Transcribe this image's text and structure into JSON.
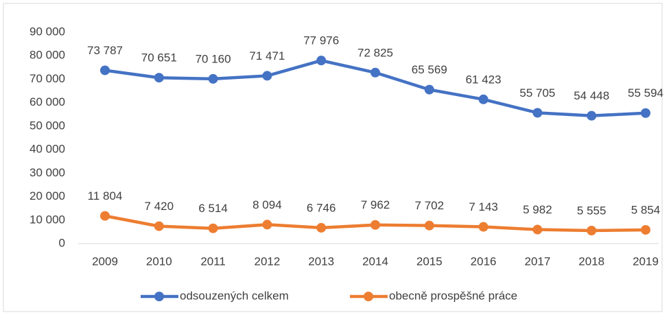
{
  "chart_data": {
    "type": "line",
    "categories": [
      "2009",
      "2010",
      "2011",
      "2012",
      "2013",
      "2014",
      "2015",
      "2016",
      "2017",
      "2018",
      "2019"
    ],
    "series": [
      {
        "name": "odsouzených celkem",
        "color": "#4472c4",
        "values": [
          73787,
          70651,
          70160,
          71471,
          77976,
          72825,
          65569,
          61423,
          55705,
          54448,
          55594
        ],
        "value_labels": [
          "73 787",
          "70 651",
          "70 160",
          "71 471",
          "77 976",
          "72 825",
          "65 569",
          "61 423",
          "55 705",
          "54 448",
          "55 594"
        ]
      },
      {
        "name": "obecně prospěšné práce",
        "color": "#ed7d31",
        "values": [
          11804,
          7420,
          6514,
          8094,
          6746,
          7962,
          7702,
          7143,
          5982,
          5555,
          5854
        ],
        "value_labels": [
          "11 804",
          "7 420",
          "6 514",
          "8 094",
          "6 746",
          "7 962",
          "7 702",
          "7 143",
          "5 982",
          "5 555",
          "5 854"
        ]
      }
    ],
    "ylim": [
      0,
      90000
    ],
    "yticks": [
      0,
      {
        "value": 10000,
        "label": "10 000"
      },
      {
        "value": 20000,
        "label": "20 000"
      },
      {
        "value": 30000,
        "label": "30 000"
      },
      {
        "value": 40000,
        "label": "40 000"
      },
      {
        "value": 50000,
        "label": "50 000"
      },
      {
        "value": 60000,
        "label": "60 000"
      },
      {
        "value": 70000,
        "label": "70 000"
      },
      {
        "value": 80000,
        "label": "80 000"
      },
      {
        "value": 90000,
        "label": "90 000"
      }
    ],
    "grid": false,
    "legend": "bottom"
  }
}
